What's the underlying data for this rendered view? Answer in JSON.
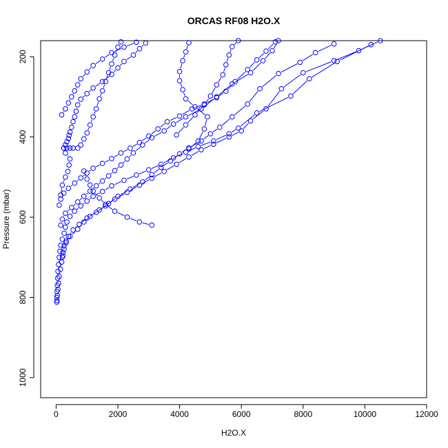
{
  "chart_data": {
    "type": "scatter",
    "title": "ORCAS RF08 H2O.X",
    "xlabel": "H2O.X",
    "ylabel": "Pressure (mbar)",
    "xlim": [
      -500,
      12000
    ],
    "ylim": [
      1050,
      160
    ],
    "y_reversed": true,
    "xticks": [
      0,
      2000,
      4000,
      6000,
      8000,
      10000,
      12000
    ],
    "yticks": [
      200,
      400,
      600,
      800,
      1000
    ],
    "grid": false,
    "legend": "none",
    "color": "#0000ff",
    "marker": "open-circle",
    "series": [
      {
        "points": [
          [
            20,
            812
          ],
          [
            25,
            800
          ],
          [
            30,
            785
          ],
          [
            40,
            770
          ],
          [
            50,
            752
          ],
          [
            60,
            735
          ],
          [
            80,
            718
          ],
          [
            100,
            700
          ],
          [
            120,
            685
          ],
          [
            150,
            670
          ],
          [
            200,
            655
          ],
          [
            260,
            640
          ],
          [
            300,
            625
          ],
          [
            350,
            612
          ],
          [
            450,
            598
          ],
          [
            600,
            585
          ],
          [
            800,
            572
          ],
          [
            1000,
            560
          ],
          [
            1200,
            548
          ],
          [
            1500,
            536
          ],
          [
            1800,
            522
          ],
          [
            2200,
            508
          ],
          [
            2600,
            495
          ],
          [
            3000,
            482
          ],
          [
            3400,
            468
          ],
          [
            3800,
            452
          ],
          [
            4200,
            438
          ],
          [
            4600,
            424
          ],
          [
            5100,
            410
          ],
          [
            5600,
            392
          ],
          [
            5900,
            378
          ],
          [
            6500,
            340
          ],
          [
            7600,
            298
          ],
          [
            8200,
            255
          ],
          [
            9100,
            212
          ],
          [
            10200,
            170
          ]
        ]
      },
      {
        "points": [
          [
            30,
            808
          ],
          [
            40,
            795
          ],
          [
            60,
            780
          ],
          [
            80,
            765
          ],
          [
            100,
            748
          ],
          [
            140,
            730
          ],
          [
            180,
            712
          ],
          [
            220,
            696
          ],
          [
            260,
            680
          ],
          [
            320,
            664
          ],
          [
            400,
            648
          ],
          [
            550,
            632
          ],
          [
            750,
            618
          ],
          [
            1000,
            602
          ],
          [
            1300,
            588
          ],
          [
            1600,
            572
          ],
          [
            1900,
            555
          ],
          [
            2300,
            538
          ],
          [
            2700,
            520
          ],
          [
            3100,
            503
          ],
          [
            3500,
            486
          ],
          [
            3900,
            468
          ],
          [
            4300,
            450
          ],
          [
            4700,
            432
          ],
          [
            5100,
            418
          ],
          [
            5600,
            400
          ],
          [
            6000,
            385
          ],
          [
            6300,
            360
          ],
          [
            6800,
            330
          ],
          [
            7300,
            280
          ],
          [
            8000,
            240
          ],
          [
            9000,
            210
          ],
          [
            9800,
            185
          ],
          [
            10500,
            160
          ]
        ]
      },
      {
        "points": [
          [
            200,
            700
          ],
          [
            220,
            688
          ],
          [
            260,
            672
          ],
          [
            330,
            660
          ],
          [
            450,
            648
          ],
          [
            700,
            630
          ],
          [
            900,
            612
          ],
          [
            1100,
            598
          ],
          [
            1400,
            582
          ],
          [
            1700,
            566
          ],
          [
            2000,
            548
          ],
          [
            2400,
            530
          ],
          [
            2800,
            512
          ],
          [
            3100,
            494
          ],
          [
            3400,
            476
          ],
          [
            3700,
            460
          ],
          [
            4000,
            442
          ],
          [
            4300,
            427
          ],
          [
            4700,
            410
          ],
          [
            5000,
            392
          ],
          [
            5300,
            376
          ],
          [
            5700,
            350
          ],
          [
            6200,
            318
          ],
          [
            6600,
            280
          ],
          [
            7200,
            242
          ],
          [
            7900,
            214
          ],
          [
            8400,
            190
          ],
          [
            9000,
            168
          ]
        ]
      },
      {
        "points": [
          [
            150,
            620
          ],
          [
            200,
            605
          ],
          [
            300,
            590
          ],
          [
            500,
            576
          ],
          [
            700,
            562
          ],
          [
            900,
            548
          ],
          [
            1100,
            535
          ],
          [
            1300,
            522
          ],
          [
            1500,
            510
          ],
          [
            1700,
            497
          ],
          [
            1900,
            484
          ],
          [
            2100,
            470
          ],
          [
            2300,
            455
          ],
          [
            2500,
            440
          ],
          [
            2800,
            420
          ],
          [
            3100,
            402
          ],
          [
            3500,
            385
          ],
          [
            3800,
            368
          ],
          [
            4200,
            350
          ],
          [
            4700,
            330
          ],
          [
            5200,
            300
          ],
          [
            5700,
            268
          ],
          [
            6300,
            240
          ],
          [
            6700,
            210
          ],
          [
            7000,
            185
          ],
          [
            7200,
            160
          ]
        ]
      },
      {
        "points": [
          [
            100,
            570
          ],
          [
            150,
            555
          ],
          [
            250,
            540
          ],
          [
            400,
            528
          ],
          [
            600,
            515
          ],
          [
            800,
            502
          ],
          [
            1000,
            490
          ],
          [
            1200,
            478
          ],
          [
            1500,
            466
          ],
          [
            1800,
            454
          ],
          [
            2100,
            440
          ],
          [
            2400,
            428
          ],
          [
            2700,
            414
          ],
          [
            3000,
            398
          ],
          [
            3300,
            380
          ],
          [
            3600,
            362
          ],
          [
            4000,
            348
          ],
          [
            4400,
            330
          ],
          [
            4800,
            318
          ],
          [
            5200,
            302
          ],
          [
            5500,
            286
          ],
          [
            5800,
            262
          ],
          [
            6200,
            232
          ],
          [
            6500,
            208
          ],
          [
            6800,
            186
          ],
          [
            7100,
            163
          ]
        ]
      },
      {
        "points": [
          [
            150,
            545
          ],
          [
            200,
            520
          ],
          [
            300,
            500
          ],
          [
            380,
            486
          ],
          [
            420,
            470
          ],
          [
            450,
            455
          ],
          [
            300,
            440
          ],
          [
            250,
            428
          ],
          [
            300,
            420
          ],
          [
            350,
            412
          ],
          [
            400,
            404
          ],
          [
            420,
            396
          ],
          [
            450,
            388
          ],
          [
            500,
            376
          ],
          [
            550,
            362
          ],
          [
            600,
            350
          ],
          [
            650,
            336
          ],
          [
            700,
            320
          ],
          [
            800,
            306
          ],
          [
            1000,
            292
          ],
          [
            1200,
            278
          ],
          [
            1500,
            262
          ],
          [
            1800,
            244
          ],
          [
            2000,
            228
          ],
          [
            2200,
            212
          ],
          [
            2500,
            196
          ],
          [
            2700,
            180
          ],
          [
            2900,
            166
          ]
        ]
      },
      {
        "points": [
          [
            180,
            345
          ],
          [
            300,
            330
          ],
          [
            400,
            315
          ],
          [
            500,
            300
          ],
          [
            600,
            285
          ],
          [
            700,
            270
          ],
          [
            800,
            255
          ],
          [
            1000,
            238
          ],
          [
            1200,
            222
          ],
          [
            1500,
            206
          ],
          [
            1800,
            190
          ],
          [
            2200,
            176
          ],
          [
            2600,
            164
          ]
        ]
      },
      {
        "points": [
          [
            250,
            428
          ],
          [
            350,
            428
          ],
          [
            450,
            428
          ],
          [
            550,
            428
          ],
          [
            700,
            428
          ],
          [
            800,
            420
          ],
          [
            900,
            405
          ],
          [
            1000,
            390
          ],
          [
            1100,
            370
          ],
          [
            1200,
            350
          ],
          [
            1300,
            330
          ],
          [
            1400,
            305
          ],
          [
            1500,
            285
          ],
          [
            1600,
            262
          ],
          [
            1700,
            240
          ],
          [
            1800,
            218
          ],
          [
            1900,
            196
          ],
          [
            2000,
            176
          ],
          [
            2100,
            163
          ]
        ]
      },
      {
        "points": [
          [
            900,
            485
          ],
          [
            1000,
            505
          ],
          [
            1100,
            520
          ],
          [
            1200,
            535
          ],
          [
            1400,
            552
          ],
          [
            1600,
            568
          ],
          [
            1900,
            585
          ],
          [
            2300,
            600
          ],
          [
            2700,
            612
          ],
          [
            3100,
            620
          ]
        ]
      },
      {
        "points": [
          [
            3900,
            395
          ],
          [
            4200,
            370
          ],
          [
            4500,
            345
          ],
          [
            4800,
            320
          ],
          [
            5000,
            298
          ],
          [
            5200,
            270
          ],
          [
            5400,
            245
          ],
          [
            5500,
            220
          ],
          [
            5600,
            196
          ],
          [
            5700,
            175
          ],
          [
            5900,
            160
          ]
        ]
      },
      {
        "points": [
          [
            4300,
            430
          ],
          [
            4600,
            410
          ],
          [
            4800,
            380
          ],
          [
            4900,
            350
          ],
          [
            4500,
            325
          ],
          [
            4200,
            305
          ],
          [
            4100,
            282
          ],
          [
            4000,
            260
          ],
          [
            4000,
            237
          ],
          [
            4100,
            210
          ],
          [
            4200,
            188
          ],
          [
            4300,
            165
          ]
        ]
      }
    ]
  }
}
